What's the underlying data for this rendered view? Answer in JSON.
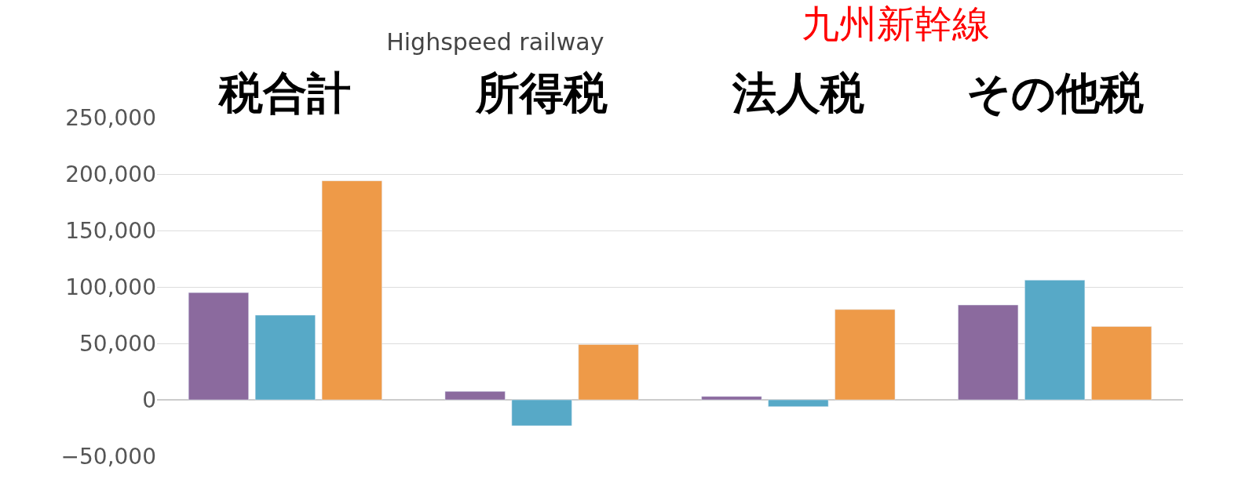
{
  "chart_data": {
    "type": "bar",
    "title": "Highspeed railway",
    "annotations": [
      "九州新幹線"
    ],
    "categories": [
      "税合計",
      "所得税",
      "法人税",
      "その他税"
    ],
    "series": [
      {
        "color": "#8b6a9e",
        "values": [
          95000,
          7500,
          3000,
          84000
        ]
      },
      {
        "color": "#57a9c7",
        "values": [
          75000,
          -23000,
          -6000,
          106000
        ]
      },
      {
        "color": "#ee9a48",
        "values": [
          194000,
          49000,
          80000,
          65000
        ]
      }
    ],
    "ylim": [
      -50000,
      250000
    ],
    "yticks": [
      {
        "value": -50000,
        "label": "−50,000"
      },
      0,
      {
        "value": 50000,
        "label": "50,000"
      },
      {
        "value": 100000,
        "label": "100,000"
      },
      {
        "value": 150000,
        "label": "150,000"
      },
      {
        "value": 200000,
        "label": "200,000"
      },
      {
        "value": 250000,
        "label": "250,000"
      }
    ],
    "grid": "y"
  }
}
